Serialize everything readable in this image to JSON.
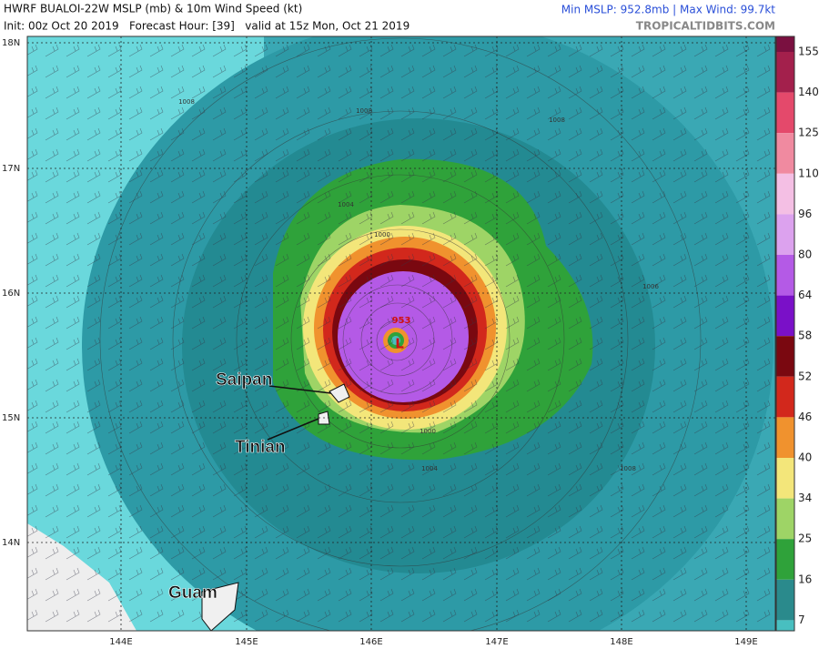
{
  "header": {
    "title": "HWRF BUALOI-22W MSLP (mb) & 10m Wind Speed (kt)",
    "subtitle": "Init: 00z Oct 20 2019   Forecast Hour: [39]   valid at 15z Mon, Oct 21 2019",
    "stats": "Min MSLP: 952.8mb | Max Wind: 99.7kt",
    "source": "TROPICALTIDBITS.COM"
  },
  "map": {
    "lat_labels": [
      "18N",
      "17N",
      "16N",
      "15N",
      "14N"
    ],
    "lon_labels": [
      "144E",
      "145E",
      "146E",
      "147E",
      "148E",
      "149E"
    ],
    "places": [
      "Saipan",
      "Tinian",
      "Guam"
    ],
    "contour_labels": [
      "1008",
      "1008",
      "1008",
      "1006",
      "1004",
      "1004",
      "1000",
      "1000",
      "1008",
      "953"
    ],
    "low_label": "L"
  },
  "colorbar": {
    "labels": [
      "155",
      "140",
      "125",
      "110",
      "96",
      "80",
      "64",
      "58",
      "52",
      "46",
      "40",
      "34",
      "25",
      "16",
      "7"
    ],
    "colors": [
      "#a3204c",
      "#e4496b",
      "#f08aa0",
      "#f4bfe4",
      "#dca2ee",
      "#b45ae6",
      "#7a10c8",
      "#7a0810",
      "#d2281c",
      "#f0922e",
      "#f3e67a",
      "#9ed466",
      "#2fa23a",
      "#2a8a8c",
      "#48bfc0"
    ]
  }
}
